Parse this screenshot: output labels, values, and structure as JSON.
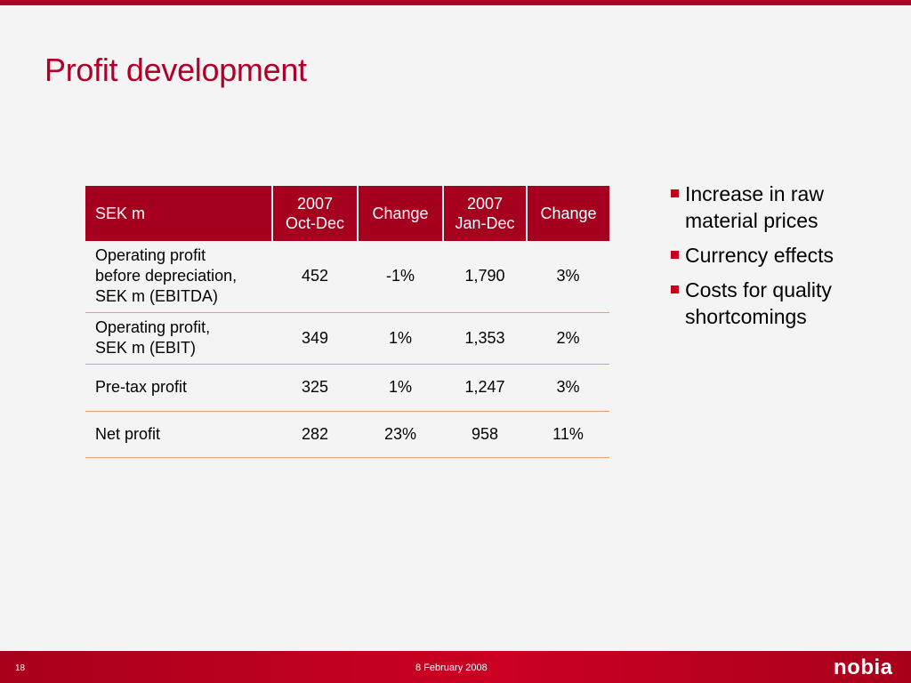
{
  "slide": {
    "title": "Profit development"
  },
  "table": {
    "header": {
      "label": "SEK m",
      "col1_line1": "2007",
      "col1_line2": "Oct-Dec",
      "col2": "Change",
      "col3_line1": "2007",
      "col3_line2": "Jan-Dec",
      "col4": "Change"
    },
    "rows": [
      {
        "label_line1": "Operating profit",
        "label_line2": "before depreciation,",
        "label_line3": "SEK m (EBITDA)",
        "q4": "452",
        "q4_change": "-1%",
        "full_year": "1,790",
        "full_year_change": "3%"
      },
      {
        "label_line1": "Operating profit,",
        "label_line2": "SEK m (EBIT)",
        "q4": "349",
        "q4_change": "1%",
        "full_year": "1,353",
        "full_year_change": "2%"
      },
      {
        "label": "Pre-tax profit",
        "q4": "325",
        "q4_change": "1%",
        "full_year": "1,247",
        "full_year_change": "3%"
      },
      {
        "label": "Net profit",
        "q4": "282",
        "q4_change": "23%",
        "full_year": "958",
        "full_year_change": "11%"
      }
    ]
  },
  "bullets": [
    {
      "line1": "Increase in raw",
      "line2": "material prices"
    },
    {
      "line1": "Currency effects"
    },
    {
      "line1": "Costs for quality",
      "line2": "shortcomings"
    }
  ],
  "footer": {
    "page_number": "18",
    "date": "8 February 2008",
    "logo_text": "nobia"
  },
  "colors": {
    "brand_red": "#b0002a",
    "header_red": "#a5001e",
    "row_divider": "#e8a07a",
    "background": "#f4f4f4"
  }
}
